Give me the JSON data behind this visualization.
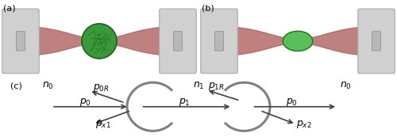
{
  "bg_color": "#ffffff",
  "fiber_color": "#c0c0c0",
  "beam_color": "#b06060",
  "cell_a_color": "#3a9a3a",
  "cell_b_color": "#5abf5a",
  "surface_color": "#808080",
  "arrow_color": "#404040",
  "label_color": "#000000",
  "panel_a_label": "(a)",
  "panel_b_label": "(b)",
  "panel_c_label": "(c)"
}
